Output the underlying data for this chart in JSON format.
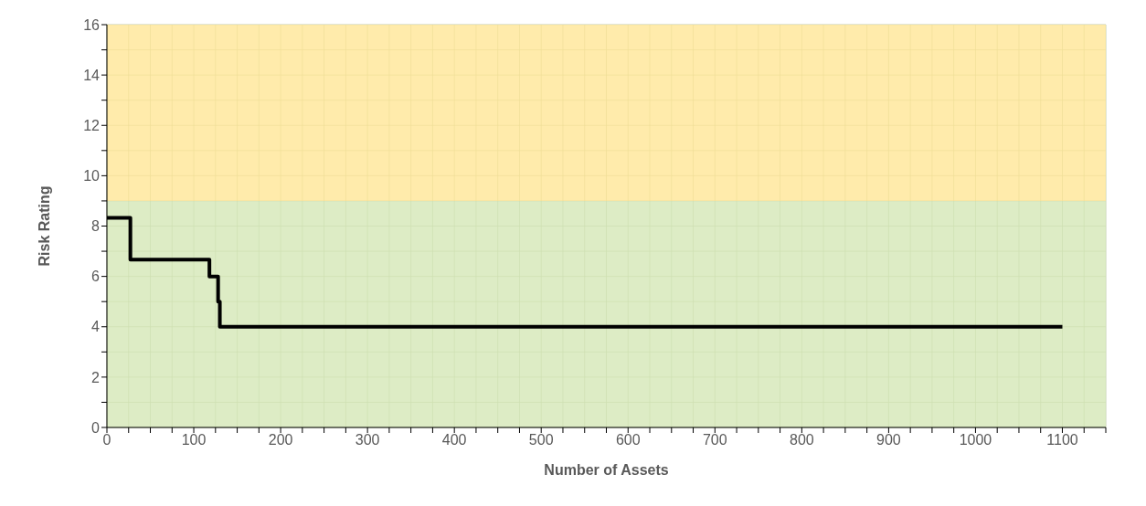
{
  "chart_data": {
    "type": "step",
    "xlabel": "Number of Assets",
    "ylabel": "Risk Rating",
    "x": [
      0,
      27,
      118,
      128,
      130,
      131,
      1100
    ],
    "series": [
      {
        "color": "#000000",
        "values": [
          8.33,
          6.67,
          6,
          5,
          4,
          4,
          4
        ]
      }
    ],
    "xlim": [
      0,
      1150
    ],
    "xticks": [
      0,
      {
        "value": 25,
        "label": null
      },
      {
        "value": 50,
        "label": null
      },
      {
        "value": 75,
        "label": null
      },
      100,
      {
        "value": 125,
        "label": null
      },
      {
        "value": 150,
        "label": null
      },
      {
        "value": 175,
        "label": null
      },
      200,
      {
        "value": 225,
        "label": null
      },
      {
        "value": 250,
        "label": null
      },
      {
        "value": 275,
        "label": null
      },
      300,
      {
        "value": 325,
        "label": null
      },
      {
        "value": 350,
        "label": null
      },
      {
        "value": 375,
        "label": null
      },
      400,
      {
        "value": 425,
        "label": null
      },
      {
        "value": 450,
        "label": null
      },
      {
        "value": 475,
        "label": null
      },
      500,
      {
        "value": 525,
        "label": null
      },
      {
        "value": 550,
        "label": null
      },
      {
        "value": 575,
        "label": null
      },
      600,
      {
        "value": 625,
        "label": null
      },
      {
        "value": 650,
        "label": null
      },
      {
        "value": 675,
        "label": null
      },
      700,
      {
        "value": 725,
        "label": null
      },
      {
        "value": 750,
        "label": null
      },
      {
        "value": 775,
        "label": null
      },
      800,
      {
        "value": 825,
        "label": null
      },
      {
        "value": 850,
        "label": null
      },
      {
        "value": 875,
        "label": null
      },
      900,
      {
        "value": 925,
        "label": null
      },
      {
        "value": 950,
        "label": null
      },
      {
        "value": 975,
        "label": null
      },
      1000,
      {
        "value": 1025,
        "label": null
      },
      {
        "value": 1050,
        "label": null
      },
      {
        "value": 1075,
        "label": null
      },
      1100,
      {
        "value": 1125,
        "label": null
      },
      {
        "value": 1150,
        "label": null
      }
    ],
    "ylim": [
      0,
      16
    ],
    "yticks": [
      0,
      {
        "value": 1,
        "label": null
      },
      2,
      {
        "value": 3,
        "label": null
      },
      4,
      {
        "value": 5,
        "label": null
      },
      6,
      {
        "value": 7,
        "label": null
      },
      8,
      {
        "value": 9,
        "label": null
      },
      10,
      {
        "value": 11,
        "label": null
      },
      12,
      {
        "value": 13,
        "label": null
      },
      14,
      {
        "value": 15,
        "label": null
      },
      16
    ],
    "bands": [
      {
        "axis": "y",
        "from": 0,
        "to": 9,
        "color": "#d5e8b8"
      },
      {
        "axis": "y",
        "from": 9,
        "to": 16,
        "color": "#ffe699"
      }
    ],
    "grid": true,
    "marker": "none",
    "line_style": "solid"
  }
}
